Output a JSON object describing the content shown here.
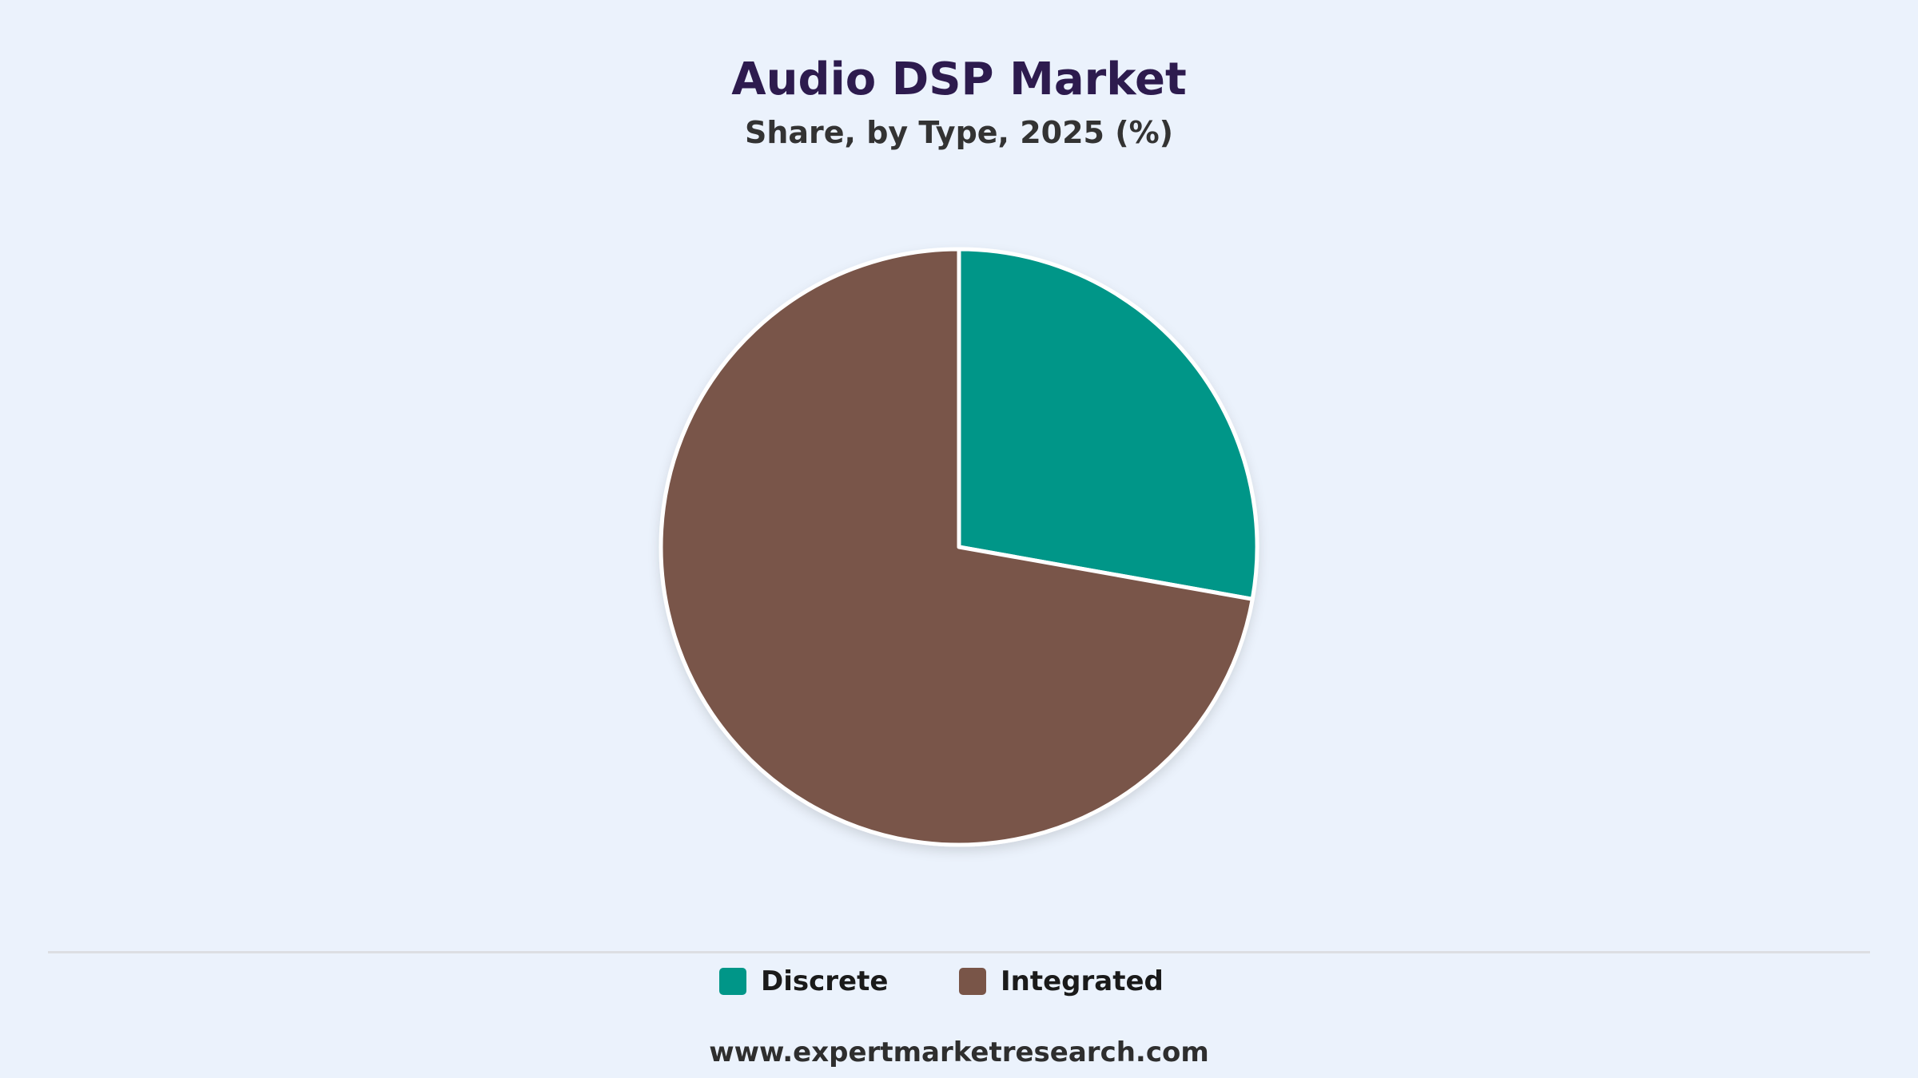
{
  "header": {
    "title": "Audio DSP Market",
    "subtitle": "Share, by Type, 2025 (%)"
  },
  "chart_data": {
    "type": "pie",
    "title": "Audio DSP Market",
    "subtitle": "Share, by Type, 2025 (%)",
    "categories": [
      "Discrete",
      "Integrated"
    ],
    "values": [
      27.8,
      72.2
    ],
    "colors": [
      "#009688",
      "#795548"
    ],
    "start_angle": "12 o'clock",
    "direction": "clockwise",
    "legend_position": "bottom-center",
    "data_labels": false
  },
  "legend": {
    "items": [
      {
        "label": "Discrete",
        "color": "#009688"
      },
      {
        "label": "Integrated",
        "color": "#795548"
      }
    ]
  },
  "footer": {
    "source": "www.expertmarketresearch.com"
  }
}
